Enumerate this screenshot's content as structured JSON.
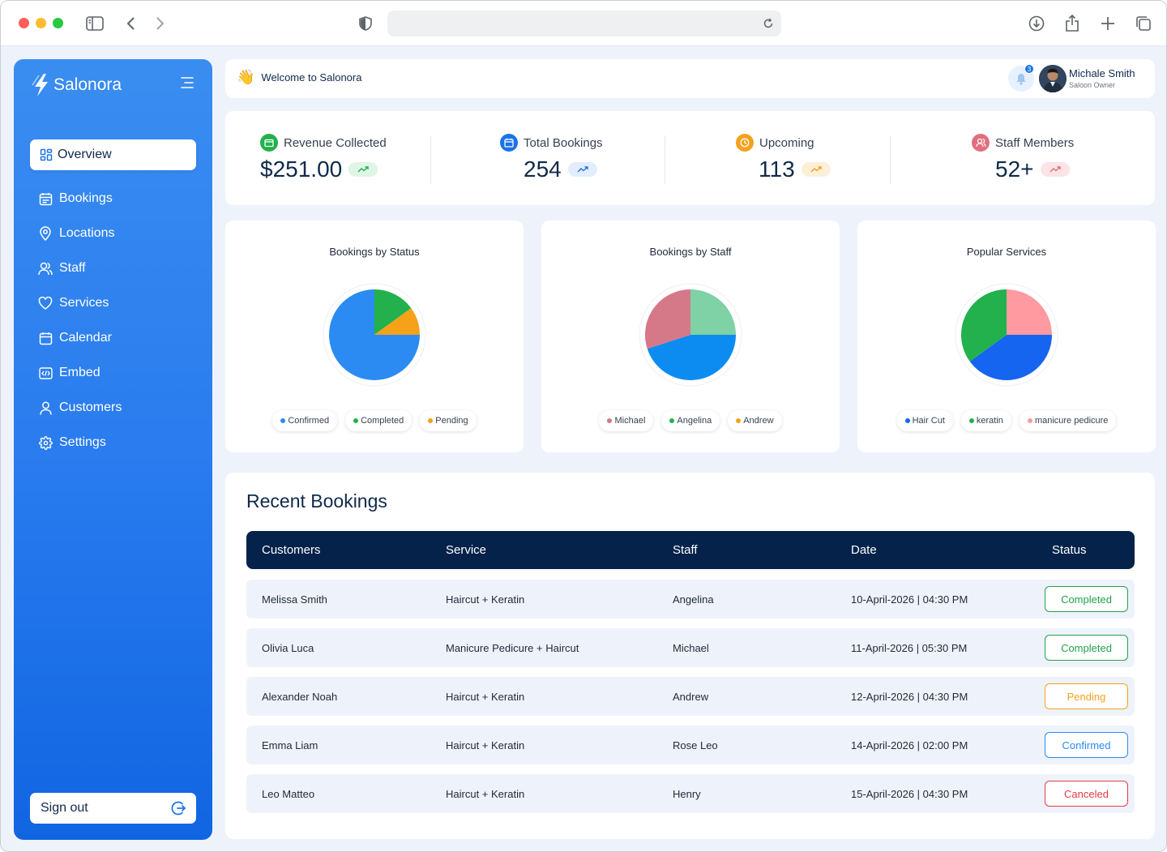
{
  "app": {
    "brand": "Salonora",
    "welcome": "Welcome to Salonora",
    "wave_emoji": "👋"
  },
  "sidebar": {
    "active": "Overview",
    "items": [
      {
        "label": "Bookings",
        "icon": "calendar-list-icon"
      },
      {
        "label": "Locations",
        "icon": "location-pin-icon"
      },
      {
        "label": "Staff",
        "icon": "users-icon"
      },
      {
        "label": "Services",
        "icon": "heart-icon"
      },
      {
        "label": "Calendar",
        "icon": "calendar-icon"
      },
      {
        "label": "Embed",
        "icon": "code-icon"
      },
      {
        "label": "Customers",
        "icon": "user-icon"
      },
      {
        "label": "Settings",
        "icon": "gear-icon"
      }
    ],
    "signout": "Sign out"
  },
  "user": {
    "name": "Michale Smith",
    "role": "Saloon Owner",
    "notifications": "3"
  },
  "stats": [
    {
      "label": "Revenue Collected",
      "value": "$251.00",
      "color": "#22b14c"
    },
    {
      "label": "Total Bookings",
      "value": "254",
      "color": "#1a73e8"
    },
    {
      "label": "Upcoming",
      "value": "113",
      "color": "#f5a11a"
    },
    {
      "label": "Staff Members",
      "value": "52+",
      "color": "#e0707e"
    }
  ],
  "charts": [
    {
      "title": "Bookings by Status",
      "chart_data": {
        "type": "pie",
        "slices": [
          {
            "label": "Confirmed",
            "value": 75,
            "color": "#2b8bf2"
          },
          {
            "label": "Completed",
            "value": 15,
            "color": "#22b14c"
          },
          {
            "label": "Pending",
            "value": 10,
            "color": "#f5a11a"
          }
        ]
      }
    },
    {
      "title": "Bookings by Staff",
      "chart_data": {
        "type": "pie",
        "slices": [
          {
            "label": "Michael",
            "value": 30,
            "color": "#d57888"
          },
          {
            "label": "Angelina",
            "value": 25,
            "color": "#7fd1a6"
          },
          {
            "label": "Andrew",
            "value": 45,
            "color": "#0c8cf0"
          }
        ]
      }
    },
    {
      "title": "Popular Services",
      "chart_data": {
        "type": "pie",
        "slices": [
          {
            "label": "Hair Cut",
            "value": 40,
            "color": "#1565f0"
          },
          {
            "label": "keratin",
            "value": 35,
            "color": "#22b14c"
          },
          {
            "label": "manicure pedicure",
            "value": 25,
            "color": "#ff9aa0"
          }
        ]
      }
    }
  ],
  "legends": [
    [
      {
        "label": "Confirmed",
        "color": "#2b8bf2"
      },
      {
        "label": "Completed",
        "color": "#22b14c"
      },
      {
        "label": "Pending",
        "color": "#f5a11a"
      }
    ],
    [
      {
        "label": "Michael",
        "color": "#d57888"
      },
      {
        "label": "Angelina",
        "color": "#22b14c"
      },
      {
        "label": "Andrew",
        "color": "#f5a11a"
      }
    ],
    [
      {
        "label": "Hair Cut",
        "color": "#1565f0"
      },
      {
        "label": "keratin",
        "color": "#22b14c"
      },
      {
        "label": "manicure pedicure",
        "color": "#ff9aa0"
      }
    ]
  ],
  "bookings": {
    "title": "Recent Bookings",
    "columns": [
      "Customers",
      "Service",
      "Staff",
      "Date",
      "Status"
    ],
    "rows": [
      {
        "customer": "Melissa Smith",
        "service": "Haircut + Keratin",
        "staff": "Angelina",
        "date": "10-April-2026 | 04:30 PM",
        "status": "Completed"
      },
      {
        "customer": "Olivia Luca",
        "service": "Manicure Pedicure + Haircut",
        "staff": "Michael",
        "date": "11-April-2026 | 05:30 PM",
        "status": "Completed"
      },
      {
        "customer": "Alexander Noah",
        "service": "Haircut + Keratin",
        "staff": "Andrew",
        "date": "12-April-2026 | 04:30 PM",
        "status": "Pending"
      },
      {
        "customer": "Emma Liam",
        "service": "Haircut + Keratin",
        "staff": "Rose Leo",
        "date": "14-April-2026 | 02:00 PM",
        "status": "Confirmed"
      },
      {
        "customer": "Leo Matteo",
        "service": "Haircut + Keratin",
        "staff": "Henry",
        "date": "15-April-2026 | 04:30 PM",
        "status": "Canceled"
      }
    ],
    "status_colors": {
      "Completed": "#22a24a",
      "Pending": "#f5a11a",
      "Confirmed": "#2b8bf2",
      "Canceled": "#e53946"
    }
  }
}
